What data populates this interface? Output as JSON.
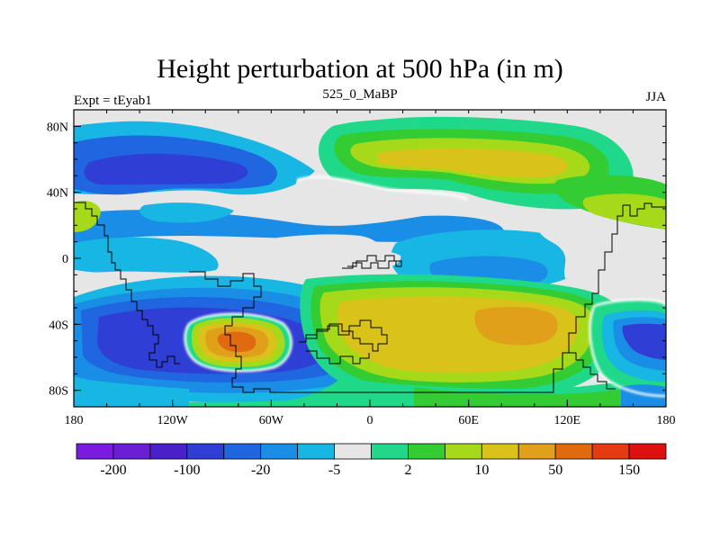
{
  "title": "Height perturbation at 500 hPa (in m)",
  "left_string": "Expt = tEyab1",
  "center_string": "525_0_MaBP",
  "right_string": "JJA",
  "colors": {
    "land_outline": "#000000",
    "levels": [
      "#7a1be0",
      "#6a1fd4",
      "#4a20c8",
      "#2f3fd6",
      "#1f66e0",
      "#1a8ee6",
      "#17b6e3",
      "#e6e6e6",
      "#1fd88a",
      "#33cc33",
      "#a6d91a",
      "#d9c21a",
      "#e0a01a",
      "#e06a10",
      "#e63a12",
      "#e01010"
    ]
  },
  "chart_data": {
    "type": "heatmap",
    "title": "Height perturbation at 500 hPa (in m)",
    "xlim": [
      -180,
      180
    ],
    "ylim": [
      -90,
      90
    ],
    "x_ticks": [
      {
        "value": -180,
        "label": "180"
      },
      {
        "value": -120,
        "label": "120W"
      },
      {
        "value": -60,
        "label": "60W"
      },
      {
        "value": 0,
        "label": "0"
      },
      {
        "value": 60,
        "label": "60E"
      },
      {
        "value": 120,
        "label": "120E"
      },
      {
        "value": 180,
        "label": "180"
      }
    ],
    "y_ticks": [
      {
        "value": 80,
        "label": "80N"
      },
      {
        "value": 40,
        "label": "40N"
      },
      {
        "value": 0,
        "label": "0"
      },
      {
        "value": -40,
        "label": "40S"
      },
      {
        "value": -80,
        "label": "80S"
      }
    ],
    "colorbar_labels": [
      {
        "boundary": 1,
        "label": "-200"
      },
      {
        "boundary": 3,
        "label": "-100"
      },
      {
        "boundary": 5,
        "label": "-20"
      },
      {
        "boundary": 7,
        "label": "-5"
      },
      {
        "boundary": 9,
        "label": "2"
      },
      {
        "boundary": 11,
        "label": "10"
      },
      {
        "boundary": 13,
        "label": "50"
      },
      {
        "boundary": 15,
        "label": "150"
      }
    ],
    "features": [
      {
        "name": "north-mid-low",
        "lon": -120,
        "lat": 45,
        "rx": 60,
        "ry": 22,
        "level": 3
      },
      {
        "name": "north-high",
        "lon": 45,
        "lat": 50,
        "rx": 55,
        "ry": 22,
        "level": 12
      },
      {
        "name": "south-low",
        "lon": -95,
        "lat": -48,
        "rx": 90,
        "ry": 32,
        "level": 3
      },
      {
        "name": "south-high-core",
        "lon": -80,
        "lat": -50,
        "rx": 25,
        "ry": 18,
        "level": 14
      },
      {
        "name": "south-central-high",
        "lon": 75,
        "lat": -40,
        "rx": 85,
        "ry": 35,
        "level": 12
      },
      {
        "name": "south-east-low",
        "lon": 170,
        "lat": -47,
        "rx": 25,
        "ry": 18,
        "level": 3
      },
      {
        "name": "equatorial-low",
        "lon": 50,
        "lat": 5,
        "rx": 60,
        "ry": 12,
        "level": 5
      }
    ]
  }
}
